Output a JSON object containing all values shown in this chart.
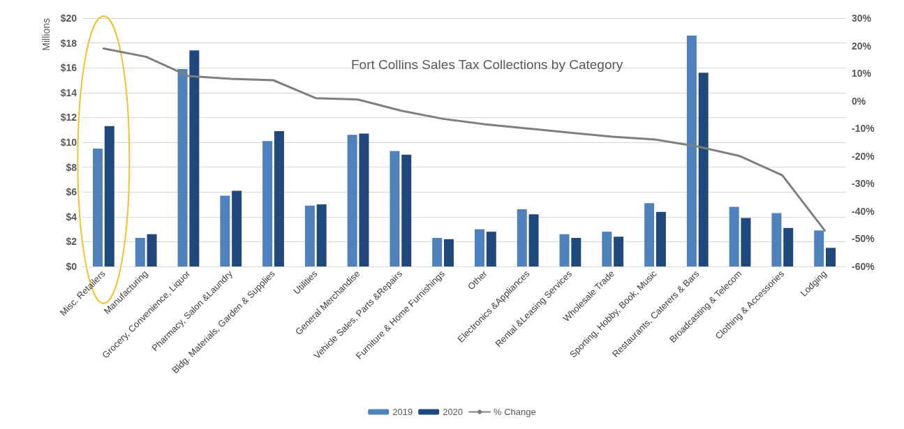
{
  "chart_data": {
    "type": "bar",
    "title": "Fort Collins Sales Tax Collections by Category",
    "ylabel": "Millions",
    "categories": [
      "Misc. Retailers",
      "Manufacturing",
      "Grocery, Convenience, Liquor",
      "Pharmacy, Salon &Laundry",
      "Bldg. Materials, Garden & Supplies",
      "Utilities",
      "General Merchandise",
      "Vehicle Sales, Parts &Repairs",
      "Furniture & Home Furnishings",
      "Other",
      "Electronics &Appliances",
      "Rental &Leasing Services",
      "Wholesale Trade",
      "Sporting, Hobby, Book, Music",
      "Restaurants, Caterers & Bars",
      "Broadcasting & Telecom",
      "Clothing & Accessories",
      "Lodging"
    ],
    "series": [
      {
        "name": "2019",
        "color": "#4f81bd",
        "values": [
          9.5,
          2.3,
          15.9,
          5.7,
          10.1,
          4.9,
          10.6,
          9.3,
          2.3,
          3.0,
          4.6,
          2.6,
          2.8,
          5.1,
          18.6,
          4.8,
          4.3,
          2.9
        ]
      },
      {
        "name": "2020",
        "color": "#1f497d",
        "values": [
          11.3,
          2.6,
          17.4,
          6.1,
          10.9,
          5.0,
          10.7,
          9.0,
          2.2,
          2.8,
          4.2,
          2.3,
          2.4,
          4.4,
          15.6,
          3.9,
          3.1,
          1.5
        ]
      },
      {
        "name": "% Change",
        "type": "line",
        "axis": "y2",
        "color": "#7f7f7f",
        "values": [
          19,
          16,
          9,
          8,
          7.5,
          1,
          0.5,
          -3.5,
          -6.5,
          -8.5,
          -10,
          -11.5,
          -13,
          -14,
          -16.5,
          -20,
          -27,
          -47
        ]
      }
    ],
    "ylim": [
      0,
      20
    ],
    "yticks": [
      {
        "value": 0,
        "label": "$0"
      },
      {
        "value": 2,
        "label": "$2"
      },
      {
        "value": 4,
        "label": "$4"
      },
      {
        "value": 6,
        "label": "$6"
      },
      {
        "value": 8,
        "label": "$8"
      },
      {
        "value": 10,
        "label": "$10"
      },
      {
        "value": 12,
        "label": "$12"
      },
      {
        "value": 14,
        "label": "$14"
      },
      {
        "value": 16,
        "label": "$16"
      },
      {
        "value": 18,
        "label": "$18"
      },
      {
        "value": 20,
        "label": "$20"
      }
    ],
    "y2lim": [
      -60,
      30
    ],
    "y2ticks": [
      {
        "value": -60,
        "label": "-60%"
      },
      {
        "value": -50,
        "label": "-50%"
      },
      {
        "value": -40,
        "label": "-40%"
      },
      {
        "value": -30,
        "label": "-30%"
      },
      {
        "value": -20,
        "label": "-20%"
      },
      {
        "value": -10,
        "label": "-10%"
      },
      {
        "value": 0,
        "label": "0%"
      },
      {
        "value": 10,
        "label": "10%"
      },
      {
        "value": 20,
        "label": "20%"
      },
      {
        "value": 30,
        "label": "30%"
      }
    ],
    "grid": "y",
    "legend": "bottom",
    "marker": "none",
    "line_style": "solid"
  }
}
